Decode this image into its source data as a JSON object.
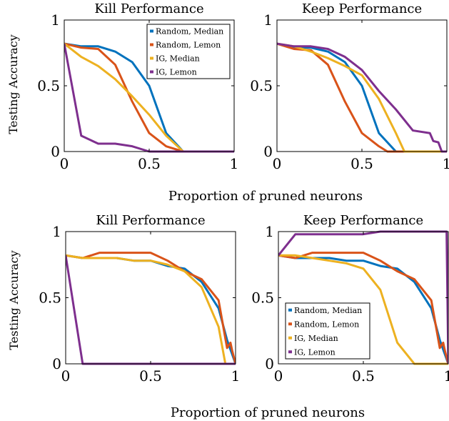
{
  "figure": {
    "xlabels": [
      "Proportion of pruned neurons",
      "Proportion of pruned neurons"
    ]
  },
  "chart_data": [
    {
      "type": "line",
      "title": "Kill Performance",
      "xlabel": "",
      "ylabel": "Testing Accuracy",
      "xlim": [
        0,
        1
      ],
      "ylim": [
        0,
        1
      ],
      "xticks": [
        "0",
        "0.5",
        "1"
      ],
      "yticks": [
        "0",
        "0.5",
        "1"
      ],
      "legend": "top-right",
      "grid": false,
      "series": [
        {
          "name": "Random, Median",
          "color": "#0072BD",
          "x": [
            0,
            0.1,
            0.2,
            0.3,
            0.4,
            0.5,
            0.6,
            0.7,
            0.8,
            0.9,
            1.0
          ],
          "y": [
            0.82,
            0.8,
            0.8,
            0.76,
            0.68,
            0.5,
            0.14,
            0.0,
            0.0,
            0.0,
            0.0
          ]
        },
        {
          "name": "Random, Lemon",
          "color": "#D95319",
          "x": [
            0,
            0.1,
            0.2,
            0.3,
            0.4,
            0.5,
            0.6,
            0.7,
            0.8,
            0.9,
            1.0
          ],
          "y": [
            0.82,
            0.79,
            0.78,
            0.66,
            0.38,
            0.14,
            0.04,
            0.0,
            0.0,
            0.0,
            0.0
          ]
        },
        {
          "name": "IG, Median",
          "color": "#EDB120",
          "x": [
            0,
            0.1,
            0.2,
            0.3,
            0.4,
            0.5,
            0.6,
            0.7,
            0.8,
            0.9,
            1.0
          ],
          "y": [
            0.82,
            0.72,
            0.65,
            0.55,
            0.42,
            0.28,
            0.12,
            0.0,
            0.0,
            0.0,
            0.0
          ]
        },
        {
          "name": "IG, Lemon",
          "color": "#7E2F8E",
          "x": [
            0,
            0.1,
            0.2,
            0.3,
            0.4,
            0.5,
            0.6,
            0.7,
            0.8,
            0.9,
            1.0
          ],
          "y": [
            0.82,
            0.12,
            0.06,
            0.06,
            0.04,
            0.0,
            0.0,
            0.0,
            0.0,
            0.0,
            0.0
          ]
        }
      ]
    },
    {
      "type": "line",
      "title": "Keep Performance",
      "xlabel": "",
      "ylabel": "",
      "xlim": [
        0,
        1
      ],
      "ylim": [
        0,
        1
      ],
      "xticks": [
        "0",
        "0.5",
        "1"
      ],
      "yticks": [
        "0",
        "0.5",
        "1"
      ],
      "legend": "none",
      "grid": false,
      "series": [
        {
          "name": "Random, Median",
          "color": "#0072BD",
          "x": [
            0,
            0.1,
            0.2,
            0.3,
            0.4,
            0.5,
            0.6,
            0.7,
            0.8,
            0.9,
            1.0
          ],
          "y": [
            0.82,
            0.79,
            0.79,
            0.76,
            0.68,
            0.5,
            0.14,
            0.0,
            0.0,
            0.0,
            0.0
          ]
        },
        {
          "name": "Random, Lemon",
          "color": "#D95319",
          "x": [
            0,
            0.1,
            0.2,
            0.3,
            0.4,
            0.5,
            0.6,
            0.65,
            0.7,
            0.8,
            0.9,
            1.0
          ],
          "y": [
            0.82,
            0.78,
            0.77,
            0.66,
            0.38,
            0.14,
            0.04,
            0.0,
            0.0,
            0.0,
            0.0,
            0.0
          ]
        },
        {
          "name": "IG, Median",
          "color": "#EDB120",
          "x": [
            0,
            0.1,
            0.2,
            0.3,
            0.4,
            0.5,
            0.6,
            0.7,
            0.75,
            0.8,
            0.9,
            1.0
          ],
          "y": [
            0.82,
            0.8,
            0.76,
            0.71,
            0.65,
            0.58,
            0.4,
            0.14,
            0.0,
            0.0,
            0.0,
            0.0
          ]
        },
        {
          "name": "IG, Lemon",
          "color": "#7E2F8E",
          "x": [
            0,
            0.1,
            0.2,
            0.3,
            0.4,
            0.5,
            0.6,
            0.7,
            0.8,
            0.9,
            0.92,
            0.95,
            0.97,
            1.0
          ],
          "y": [
            0.82,
            0.8,
            0.8,
            0.78,
            0.72,
            0.62,
            0.46,
            0.32,
            0.16,
            0.14,
            0.08,
            0.07,
            0.0,
            0.0
          ]
        }
      ]
    },
    {
      "type": "line",
      "title": "Kill Performance",
      "xlabel": "",
      "ylabel": "Testing Accuracy",
      "xlim": [
        0,
        1
      ],
      "ylim": [
        0,
        1
      ],
      "xticks": [
        "0",
        "0.5",
        "1"
      ],
      "yticks": [
        "0",
        "0.5",
        "1"
      ],
      "legend": "none",
      "grid": false,
      "series": [
        {
          "name": "Random, Median",
          "color": "#0072BD",
          "x": [
            0,
            0.1,
            0.2,
            0.3,
            0.4,
            0.5,
            0.6,
            0.7,
            0.8,
            0.9,
            0.95,
            1.0
          ],
          "y": [
            0.82,
            0.8,
            0.8,
            0.8,
            0.78,
            0.78,
            0.74,
            0.72,
            0.62,
            0.42,
            0.18,
            0.0
          ]
        },
        {
          "name": "Random, Lemon",
          "color": "#D95319",
          "x": [
            0,
            0.1,
            0.2,
            0.3,
            0.4,
            0.5,
            0.6,
            0.7,
            0.8,
            0.9,
            0.95,
            0.97,
            0.98,
            1.0
          ],
          "y": [
            0.82,
            0.8,
            0.84,
            0.84,
            0.84,
            0.84,
            0.78,
            0.7,
            0.64,
            0.48,
            0.12,
            0.16,
            0.1,
            0.0
          ]
        },
        {
          "name": "IG, Median",
          "color": "#EDB120",
          "x": [
            0,
            0.1,
            0.2,
            0.3,
            0.4,
            0.5,
            0.6,
            0.7,
            0.8,
            0.9,
            0.94,
            1.0
          ],
          "y": [
            0.82,
            0.8,
            0.8,
            0.8,
            0.78,
            0.78,
            0.75,
            0.7,
            0.58,
            0.28,
            0.0,
            0.0
          ]
        },
        {
          "name": "IG, Lemon",
          "color": "#7E2F8E",
          "x": [
            0,
            0.1,
            0.2,
            0.3,
            0.4,
            0.5,
            0.6,
            0.7,
            0.8,
            0.9,
            1.0
          ],
          "y": [
            0.82,
            0.0,
            0.0,
            0.0,
            0.0,
            0.0,
            0.0,
            0.0,
            0.0,
            0.0,
            0.0
          ]
        }
      ]
    },
    {
      "type": "line",
      "title": "Keep Performance",
      "xlabel": "",
      "ylabel": "",
      "xlim": [
        0,
        1
      ],
      "ylim": [
        0,
        1
      ],
      "xticks": [
        "0",
        "0.5",
        "1"
      ],
      "yticks": [
        "0",
        "0.5",
        "1"
      ],
      "legend": "bottom-right",
      "grid": false,
      "series": [
        {
          "name": "Random, Median",
          "color": "#0072BD",
          "x": [
            0,
            0.1,
            0.2,
            0.3,
            0.4,
            0.5,
            0.6,
            0.7,
            0.8,
            0.9,
            0.95,
            1.0
          ],
          "y": [
            0.82,
            0.8,
            0.8,
            0.8,
            0.78,
            0.78,
            0.74,
            0.72,
            0.62,
            0.42,
            0.18,
            0.0
          ]
        },
        {
          "name": "Random, Lemon",
          "color": "#D95319",
          "x": [
            0,
            0.1,
            0.2,
            0.3,
            0.4,
            0.5,
            0.6,
            0.7,
            0.8,
            0.9,
            0.95,
            0.97,
            0.98,
            1.0
          ],
          "y": [
            0.82,
            0.8,
            0.84,
            0.84,
            0.84,
            0.84,
            0.78,
            0.7,
            0.64,
            0.48,
            0.12,
            0.16,
            0.1,
            0.0
          ]
        },
        {
          "name": "IG, Median",
          "color": "#EDB120",
          "x": [
            0,
            0.1,
            0.2,
            0.3,
            0.4,
            0.5,
            0.6,
            0.7,
            0.8,
            0.9,
            1.0
          ],
          "y": [
            0.82,
            0.82,
            0.8,
            0.78,
            0.76,
            0.72,
            0.56,
            0.16,
            0.0,
            0.0,
            0.0
          ]
        },
        {
          "name": "IG, Lemon",
          "color": "#7E2F8E",
          "x": [
            0,
            0.1,
            0.2,
            0.3,
            0.4,
            0.5,
            0.6,
            0.7,
            0.8,
            0.9,
            0.99,
            1.0
          ],
          "y": [
            0.82,
            0.98,
            0.98,
            0.98,
            0.98,
            0.98,
            1.0,
            1.0,
            1.0,
            1.0,
            1.0,
            0.0
          ]
        }
      ]
    }
  ]
}
